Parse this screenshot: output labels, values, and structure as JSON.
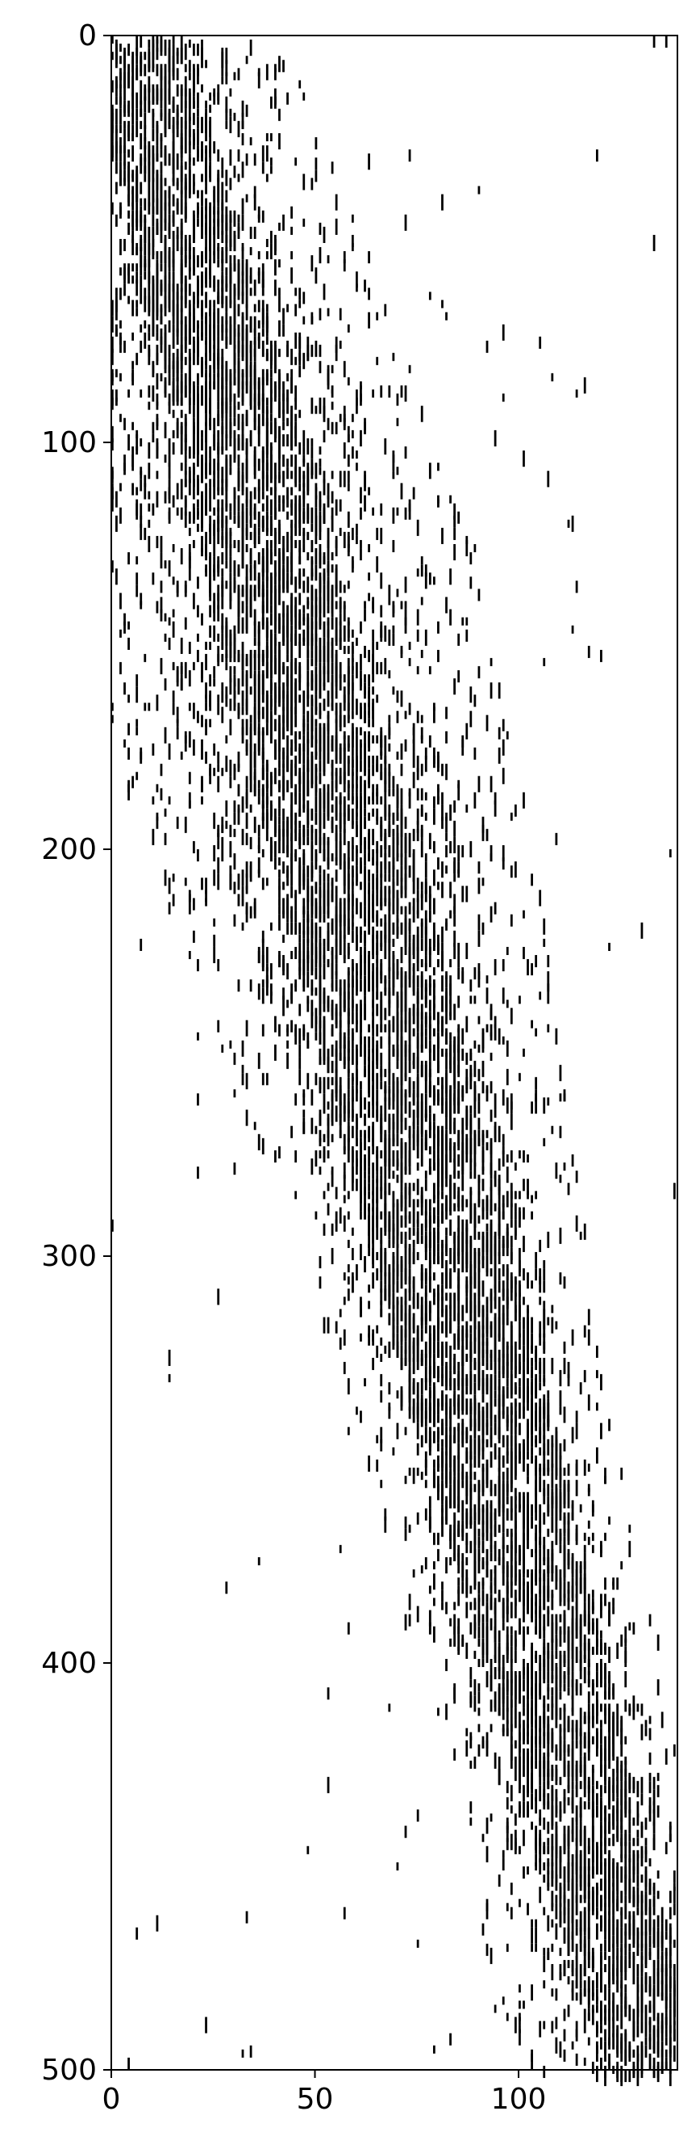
{
  "chart_data": {
    "type": "heatmap",
    "title": "",
    "xlabel": "",
    "ylabel": "",
    "xlim": [
      0,
      139
    ],
    "ylim": [
      500,
      0
    ],
    "grid": false,
    "legend": "none",
    "colors": {
      "filled": "#000000",
      "empty": "#ffffff",
      "axis": "#000000"
    },
    "x_ticks": [
      {
        "value": 0,
        "label": "0"
      },
      {
        "value": 50,
        "label": "50"
      },
      {
        "value": 100,
        "label": "100"
      }
    ],
    "y_ticks": [
      {
        "value": 0,
        "label": "0"
      },
      {
        "value": 100,
        "label": "100"
      },
      {
        "value": 200,
        "label": "200"
      },
      {
        "value": 300,
        "label": "300"
      },
      {
        "value": 400,
        "label": "400"
      },
      {
        "value": 500,
        "label": "500"
      }
    ],
    "band": {
      "rows": 501,
      "cols": 139,
      "center_start": 6,
      "center_end": 132,
      "core_width": 18,
      "spread_width": 34,
      "seed": 1729
    },
    "sparse_marks": [
      {
        "row": 0,
        "col": 133
      },
      {
        "row": 0,
        "col": 136
      },
      {
        "row": 28,
        "col": 73
      },
      {
        "row": 74,
        "col": 105
      },
      {
        "row": 150,
        "col": 117
      },
      {
        "row": 157,
        "col": 6
      },
      {
        "row": 185,
        "col": 12
      },
      {
        "row": 196,
        "col": 109
      },
      {
        "row": 206,
        "col": 103
      },
      {
        "row": 260,
        "col": 21
      },
      {
        "row": 277,
        "col": 30
      },
      {
        "row": 380,
        "col": 28
      },
      {
        "row": 440,
        "col": 72
      },
      {
        "row": 460,
        "col": 57
      },
      {
        "row": 485,
        "col": 111
      },
      {
        "row": 498,
        "col": 118
      }
    ]
  }
}
